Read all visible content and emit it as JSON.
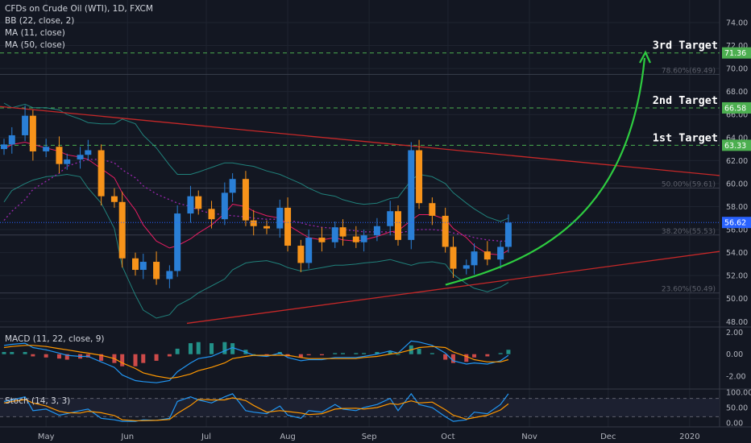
{
  "legend": {
    "symbol": "CFDs on Crude Oil (WTI), 1D, FXCM",
    "bb": "BB (22, close, 2)",
    "ma11": "MA (11, close)",
    "ma50": "MA (50, close)"
  },
  "macd_panel": {
    "title": "MACD (11, 22, close, 9)"
  },
  "stoch_panel": {
    "title": "Stoch (14, 3, 3)"
  },
  "targets": [
    {
      "label": "3rd Target",
      "value": 71.36,
      "value_label": "71.36"
    },
    {
      "label": "2nd Target",
      "value": 66.58,
      "value_label": "66.58"
    },
    {
      "label": "1st Target",
      "value": 63.33,
      "value_label": "63.33"
    }
  ],
  "fib_levels": [
    {
      "label": "78.60%(69.49)",
      "value": 69.49
    },
    {
      "label": "50.00%(59.61)",
      "value": 59.61
    },
    {
      "label": "38.20%(55.53)",
      "value": 55.53
    },
    {
      "label": "23.60%(50.49)",
      "value": 50.49
    }
  ],
  "last_price": {
    "value": 56.62,
    "label": "56.62"
  },
  "colors": {
    "background": "#131722",
    "grid": "#1f2430",
    "up": "#2a7fd6",
    "down": "#f7931a",
    "target_line": "#4caf50",
    "target_tag": "#4caf50",
    "price_tag": "#2962ff",
    "trendline": "#c62828",
    "bb_band": "#26a69a",
    "ma11": "#e91e63",
    "ma50": "#9c27b0",
    "arrow": "#2ecc40",
    "macd_line": "#2196f3",
    "signal_line": "#ff9800",
    "hist_pos": "#26a69a",
    "hist_neg": "#ef5350",
    "stoch_k": "#2196f3",
    "stoch_d": "#ff9800"
  },
  "chart_data": [
    {
      "type": "candlestick",
      "title": "CFDs on Crude Oil (WTI), 1D, FXCM",
      "x_tick_labels": [
        "May",
        "Jun",
        "Jul",
        "Aug",
        "Sep",
        "Oct",
        "Nov",
        "Dec",
        "2020"
      ],
      "y_tick_labels": [
        "74.00",
        "72.00",
        "70.00",
        "68.00",
        "66.00",
        "64.00",
        "62.00",
        "60.00",
        "58.00",
        "56.00",
        "54.00",
        "52.00",
        "50.00",
        "48.00"
      ],
      "ylim": [
        47.6,
        75.4
      ],
      "x": [
        "2019-04-15",
        "2019-04-18",
        "2019-04-23",
        "2019-04-26",
        "2019-05-01",
        "2019-05-06",
        "2019-05-09",
        "2019-05-14",
        "2019-05-17",
        "2019-05-22",
        "2019-05-27",
        "2019-05-30",
        "2019-06-04",
        "2019-06-07",
        "2019-06-12",
        "2019-06-17",
        "2019-06-20",
        "2019-06-25",
        "2019-06-28",
        "2019-07-03",
        "2019-07-08",
        "2019-07-11",
        "2019-07-16",
        "2019-07-19",
        "2019-07-24",
        "2019-07-29",
        "2019-08-01",
        "2019-08-06",
        "2019-08-09",
        "2019-08-14",
        "2019-08-19",
        "2019-08-22",
        "2019-08-27",
        "2019-08-30",
        "2019-09-04",
        "2019-09-09",
        "2019-09-12",
        "2019-09-17",
        "2019-09-20",
        "2019-09-25",
        "2019-09-30",
        "2019-10-03",
        "2019-10-08",
        "2019-10-11",
        "2019-10-16",
        "2019-10-21",
        "2019-10-24"
      ],
      "close": [
        63.4,
        64.2,
        65.9,
        62.8,
        63.2,
        61.7,
        62.1,
        62.5,
        62.9,
        58.9,
        58.4,
        53.5,
        52.5,
        53.2,
        51.7,
        52.4,
        57.4,
        58.9,
        57.8,
        56.9,
        59.2,
        60.4,
        56.8,
        56.3,
        56.1,
        57.9,
        54.6,
        53.1,
        55.3,
        54.9,
        56.2,
        55.4,
        54.9,
        55.5,
        56.3,
        57.6,
        55.1,
        62.9,
        58.3,
        57.2,
        54.5,
        52.6,
        52.9,
        54.1,
        53.4,
        54.5,
        56.62
      ],
      "ma11": [
        63.0,
        63.4,
        63.6,
        63.4,
        63.1,
        62.8,
        62.5,
        62.3,
        62.1,
        61.3,
        60.5,
        59.2,
        57.7,
        56.4,
        55.0,
        54.4,
        54.6,
        55.2,
        55.7,
        56.4,
        57.4,
        58.2,
        58.0,
        57.6,
        57.2,
        57.0,
        56.4,
        55.7,
        55.3,
        55.1,
        55.3,
        55.1,
        55.0,
        55.1,
        55.4,
        55.8,
        55.9,
        56.8,
        57.3,
        57.3,
        56.9,
        56.1,
        55.3,
        54.6,
        53.9,
        53.8,
        54.2
      ],
      "ma50": [
        56.8,
        57.6,
        58.6,
        59.5,
        60.2,
        60.9,
        61.5,
        61.9,
        62.1,
        62.1,
        61.8,
        61.2,
        60.5,
        59.8,
        59.1,
        58.6,
        58.3,
        58.0,
        57.7,
        57.4,
        57.3,
        57.2,
        57.1,
        57.0,
        56.9,
        56.9,
        56.8,
        56.6,
        56.4,
        56.2,
        56.1,
        56.0,
        55.9,
        55.8,
        55.8,
        55.8,
        55.7,
        55.9,
        56.0,
        56.0,
        55.9,
        55.7,
        55.5,
        55.3,
        55.1,
        55.0,
        55.0
      ],
      "bb_upper": [
        67.0,
        66.6,
        66.9,
        66.6,
        66.6,
        66.4,
        66.0,
        65.6,
        65.3,
        65.2,
        65.2,
        65.6,
        65.2,
        64.2,
        63.1,
        61.6,
        60.8,
        60.8,
        61.0,
        61.4,
        61.8,
        61.8,
        61.6,
        61.5,
        61.1,
        60.8,
        60.5,
        60.0,
        59.6,
        59.1,
        58.9,
        58.6,
        58.3,
        58.2,
        58.3,
        58.7,
        58.8,
        60.3,
        60.8,
        60.6,
        60.0,
        59.2,
        58.3,
        57.8,
        57.1,
        56.7,
        57.0
      ],
      "bb_lower": [
        58.4,
        59.4,
        60.0,
        60.3,
        60.6,
        60.7,
        60.8,
        60.6,
        59.6,
        58.3,
        56.1,
        52.8,
        50.3,
        49.0,
        48.3,
        48.6,
        49.4,
        50.0,
        50.5,
        51.1,
        51.7,
        52.5,
        53.1,
        53.2,
        53.3,
        53.0,
        52.7,
        52.4,
        52.5,
        52.7,
        52.9,
        52.9,
        53.0,
        53.1,
        53.2,
        53.4,
        53.2,
        52.9,
        53.1,
        53.2,
        53.0,
        52.1,
        51.3,
        50.9,
        50.6,
        51.0,
        51.4
      ],
      "target_levels": [
        71.36,
        66.58,
        63.33
      ],
      "fib_levels": [
        69.49,
        59.61,
        55.53,
        50.49
      ],
      "last_price": 56.62
    },
    {
      "type": "macd",
      "title": "MACD (11, 22, close, 9)",
      "y_tick_labels": [
        "2.00",
        "0.00",
        "-2.00"
      ],
      "ylim": [
        -3.1,
        2.4
      ],
      "macd": [
        0.8,
        0.9,
        1.0,
        0.6,
        0.4,
        0.1,
        -0.1,
        -0.2,
        -0.2,
        -0.7,
        -1.2,
        -1.9,
        -2.4,
        -2.5,
        -2.6,
        -2.4,
        -1.6,
        -0.8,
        -0.4,
        -0.2,
        0.3,
        0.6,
        0.2,
        -0.1,
        -0.2,
        0.1,
        -0.3,
        -0.6,
        -0.5,
        -0.5,
        -0.3,
        -0.3,
        -0.3,
        -0.2,
        0.0,
        0.3,
        0.1,
        1.2,
        1.1,
        0.8,
        0.1,
        -0.6,
        -0.9,
        -0.8,
        -0.9,
        -0.6,
        -0.1
      ],
      "signal": [
        0.6,
        0.7,
        0.8,
        0.8,
        0.7,
        0.5,
        0.4,
        0.2,
        0.1,
        -0.1,
        -0.4,
        -0.8,
        -1.3,
        -1.7,
        -2.0,
        -2.2,
        -2.1,
        -1.8,
        -1.5,
        -1.2,
        -0.8,
        -0.4,
        -0.2,
        -0.1,
        -0.1,
        -0.1,
        -0.1,
        -0.3,
        -0.4,
        -0.4,
        -0.4,
        -0.4,
        -0.4,
        -0.3,
        -0.2,
        0.0,
        0.1,
        0.4,
        0.6,
        0.7,
        0.6,
        0.2,
        -0.2,
        -0.5,
        -0.7,
        -0.7,
        -0.5
      ],
      "histogram": [
        0.2,
        0.2,
        0.2,
        -0.2,
        -0.3,
        -0.4,
        -0.5,
        -0.4,
        -0.3,
        -0.6,
        -0.8,
        -1.1,
        -1.1,
        -0.8,
        -0.6,
        -0.2,
        0.5,
        1.0,
        1.1,
        1.0,
        1.1,
        1.0,
        0.4,
        0.0,
        -0.1,
        0.2,
        -0.2,
        -0.3,
        -0.1,
        -0.1,
        0.1,
        0.1,
        0.1,
        0.1,
        0.2,
        0.3,
        0.0,
        0.8,
        0.5,
        0.1,
        -0.5,
        -0.8,
        -0.7,
        -0.3,
        -0.2,
        0.1,
        0.4
      ]
    },
    {
      "type": "stochastic",
      "title": "Stoch (14, 3, 3)",
      "y_tick_labels": [
        "100.00",
        "50.00",
        "0.00"
      ],
      "ylim": [
        -8,
        108
      ],
      "upper_band": 80,
      "lower_band": 20,
      "k": [
        70,
        75,
        85,
        40,
        45,
        25,
        30,
        40,
        45,
        15,
        10,
        5,
        5,
        10,
        8,
        15,
        70,
        85,
        75,
        65,
        85,
        95,
        40,
        35,
        30,
        55,
        25,
        15,
        40,
        35,
        60,
        45,
        40,
        50,
        60,
        80,
        40,
        95,
        60,
        50,
        20,
        5,
        10,
        35,
        30,
        60,
        95
      ],
      "d": [
        65,
        70,
        76,
        65,
        55,
        38,
        33,
        32,
        38,
        33,
        24,
        10,
        7,
        7,
        8,
        11,
        31,
        57,
        77,
        75,
        75,
        82,
        73,
        57,
        35,
        40,
        37,
        32,
        27,
        30,
        45,
        47,
        48,
        45,
        50,
        63,
        60,
        72,
        65,
        68,
        43,
        25,
        12,
        17,
        25,
        42,
        62
      ]
    }
  ]
}
